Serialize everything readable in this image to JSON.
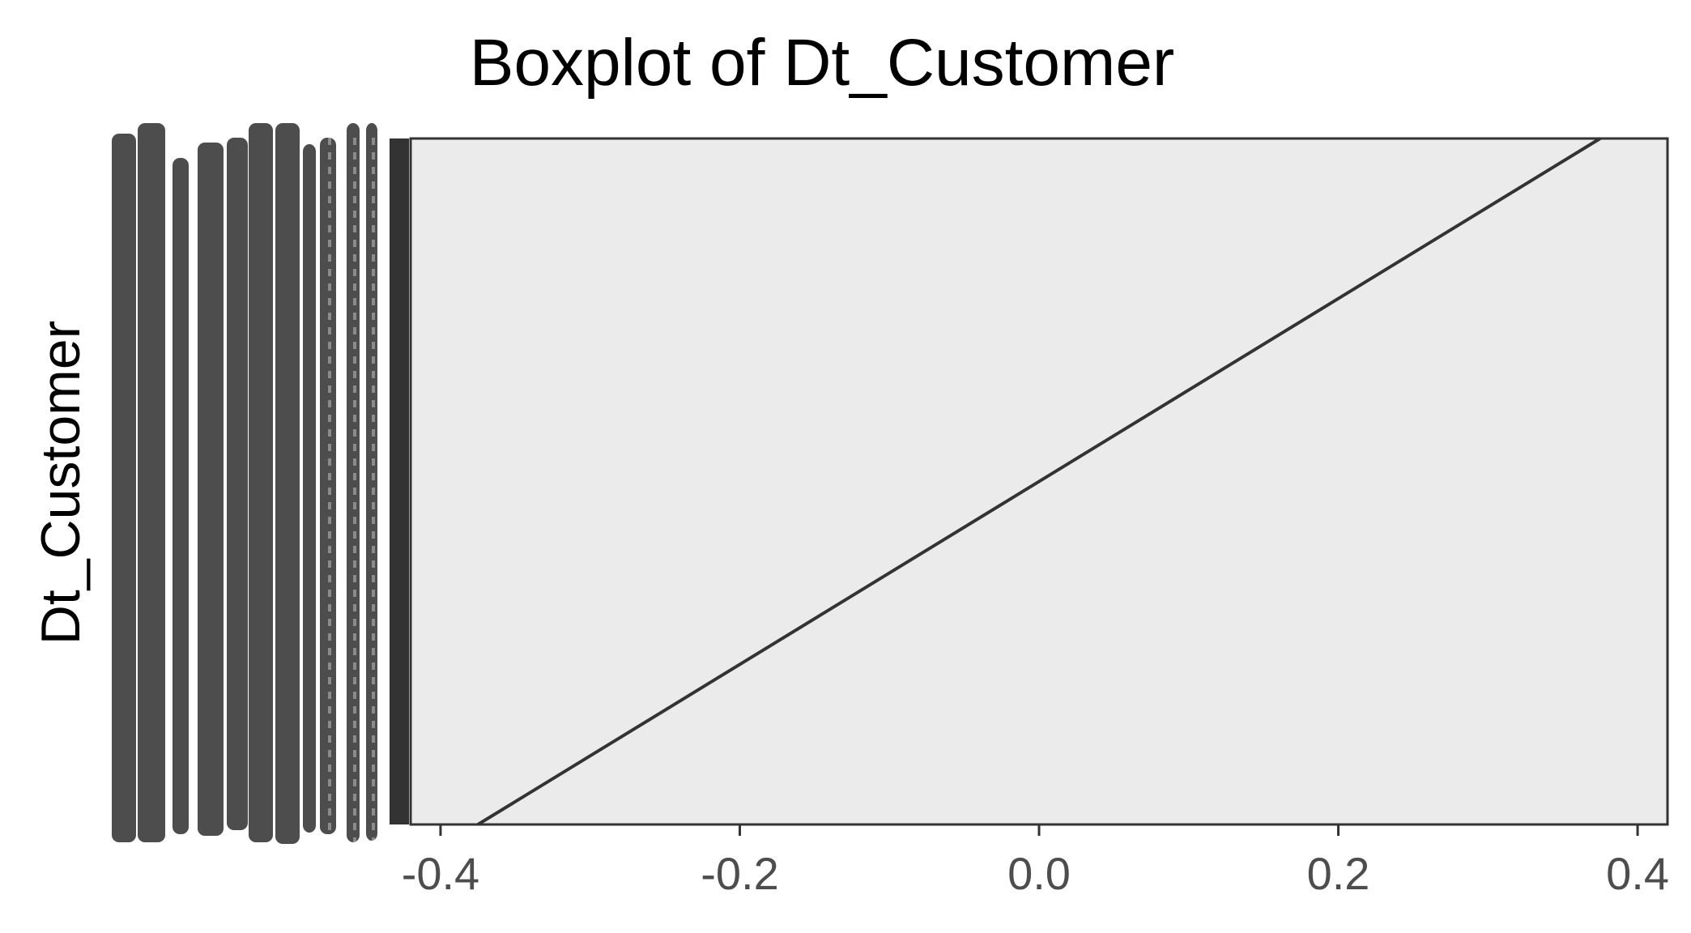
{
  "chart_data": {
    "type": "box",
    "title": "Boxplot of Dt_Customer",
    "xlabel": "",
    "ylabel": "Dt_Customer",
    "xlim": [
      -0.42,
      0.42
    ],
    "x_ticks": [
      -0.4,
      -0.2,
      0.0,
      0.2,
      0.4
    ],
    "x_tick_labels": [
      "-0.4",
      "-0.2",
      "0.0",
      "0.2",
      "0.4"
    ],
    "y_tick_labels_overplotted": true,
    "grid": false,
    "box": {
      "x_start": -0.375,
      "x_end": 0.375
    },
    "colors": {
      "panel": "#ebebeb",
      "box_line": "#333333",
      "axis_text": "#4d4d4d",
      "overplot": "#4d4d4d"
    }
  }
}
